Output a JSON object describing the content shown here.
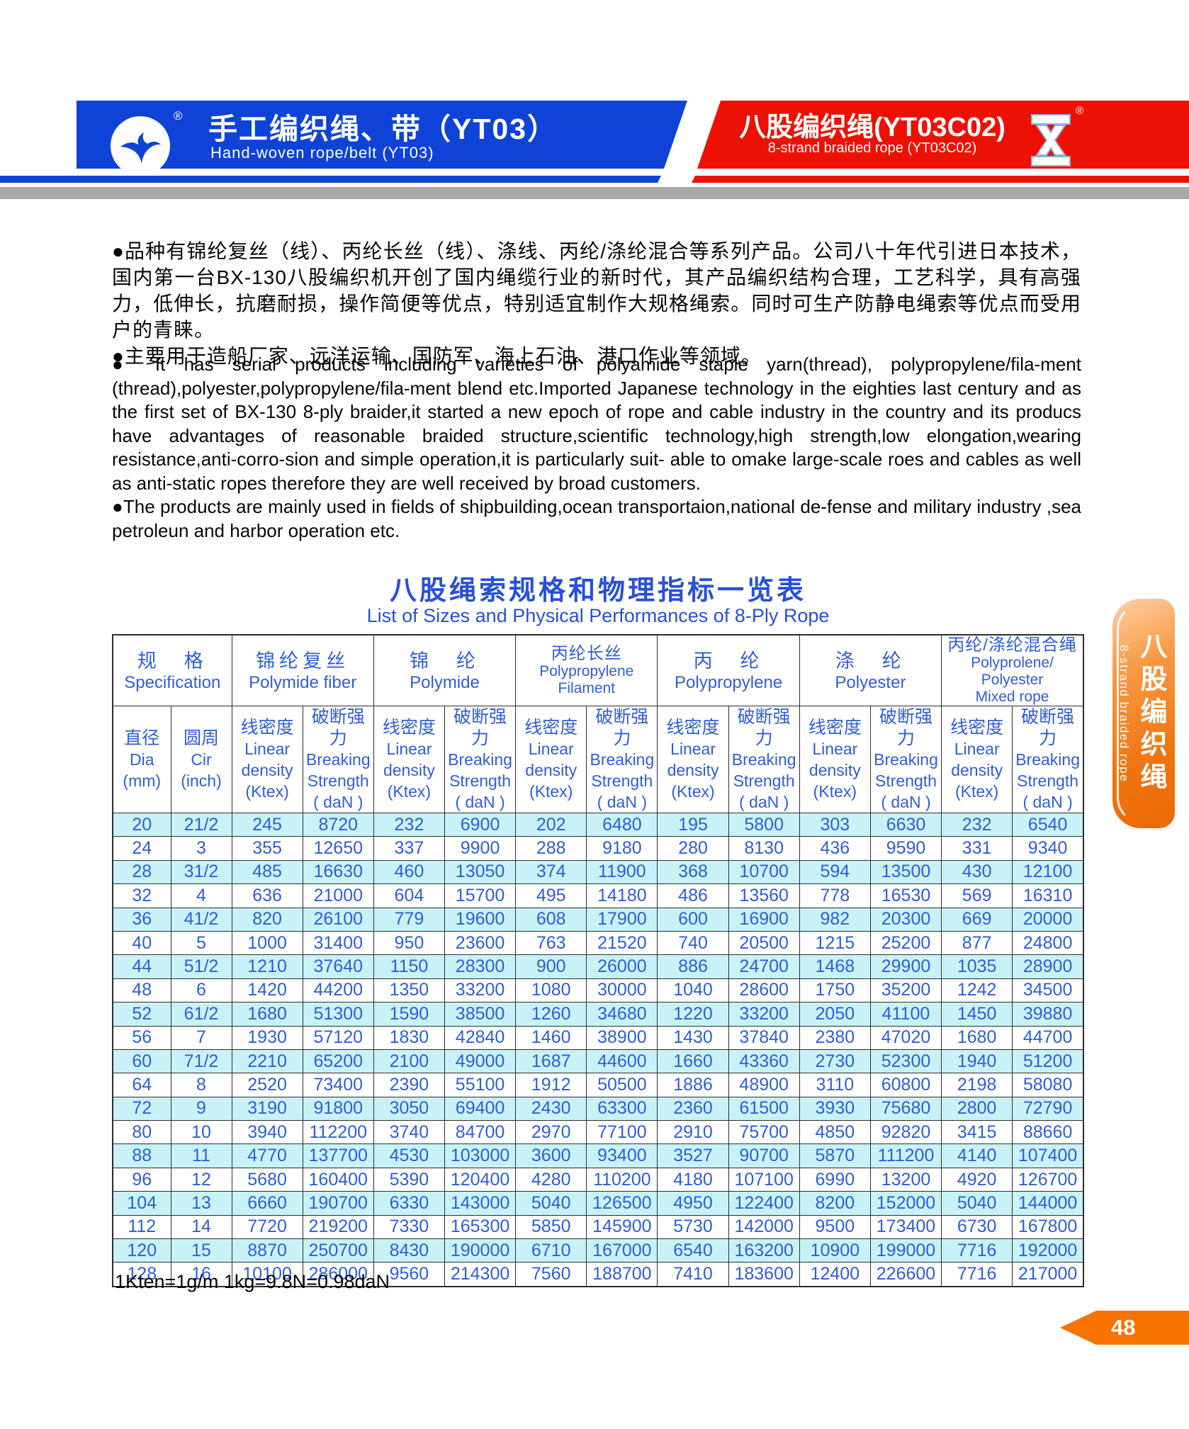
{
  "header": {
    "left": {
      "title_zh": "手工编织绳、带（YT03）",
      "title_en": "Hand-woven rope/belt (YT03)",
      "registered": "®",
      "logo": "seagull-logo"
    },
    "right": {
      "title_zh": "八股编织绳(YT03C02)",
      "title_en": "8-strand braided rope (YT03C02)",
      "registered": "®",
      "logo": "rope-hourglass-logo"
    }
  },
  "intro": {
    "zh": [
      "●品种有锦纶复丝（线）、丙纶长丝（线）、涤线、丙纶/涤纶混合等系列产品。公司八十年代引进日本技术，国内第一台BX-130八股编织机开创了国内绳缆行业的新时代，其产品编织结构合理，工艺科学，具有高强力，低伸长，抗磨耐损，操作简便等优点，特别适宜制作大规格绳索。同时可生产防静电绳索等优点而受用户的青睐。",
      "●主要用于造船厂家、远洋运输、国防军、海上石油、港口作业等领域。"
    ],
    "en": [
      "● It has serial products including varieties of polyamide staple yarn(thread), polypropylene/fila-ment (thread),polyester,polypropylene/fila-ment blend etc.Imported Japanese technology in the eighties last century and as the first set of BX-130 8-ply braider,it started a new epoch of rope and cable industry in the country and its producs have advantages of reasonable braided structure,scientific technology,high strength,low elongation,wearing resistance,anti-corro-sion and simple operation,it is particularly suit- able to omake large-scale roes and cables as well as anti-static ropes therefore they are well received by broad customers.",
      "●The products are mainly used in fields of shipbuilding,ocean transportaion,national de-fense and military industry ,sea petroleun and harbor operation etc."
    ]
  },
  "table": {
    "title_zh": "八股绳索规格和物理指标一览表",
    "title_en": "List of Sizes and Physical Performances of 8-Ply Rope",
    "column_groups": [
      [
        "规　格",
        "Specification"
      ],
      [
        "锦纶复丝",
        "Polymide fiber"
      ],
      [
        "锦　纶",
        "Polymide"
      ],
      [
        "丙纶长丝",
        "Polypropylene",
        "Filament"
      ],
      [
        "丙　纶",
        "Polypropylene"
      ],
      [
        "涤　纶",
        "Polyester"
      ],
      [
        "丙纶/涤纶混合绳",
        "Polyprolene/ Polyester",
        "Mixed rope"
      ]
    ],
    "subheaders": [
      [
        "直径",
        "Dia",
        "(mm)"
      ],
      [
        "圆周",
        "Cir",
        "(inch)"
      ],
      [
        "线密度",
        "Linear",
        "density",
        "(Ktex)"
      ],
      [
        "破断强力",
        "Breaking",
        "Strength",
        "( daN )"
      ],
      [
        "线密度",
        "Linear",
        "density",
        "(Ktex)"
      ],
      [
        "破断强力",
        "Breaking",
        "Strength",
        "( daN )"
      ],
      [
        "线密度",
        "Linear",
        "density",
        "(Ktex)"
      ],
      [
        "破断强力",
        "Breaking",
        "Strength",
        "( daN )"
      ],
      [
        "线密度",
        "Linear",
        "density",
        "(Ktex)"
      ],
      [
        "破断强力",
        "Breaking",
        "Strength",
        "( daN )"
      ],
      [
        "线密度",
        "Linear",
        "density",
        "(Ktex)"
      ],
      [
        "破断强力",
        "Breaking",
        "Strength",
        "( daN )"
      ],
      [
        "线密度",
        "Linear",
        "density",
        "(Ktex)"
      ],
      [
        "破断强力",
        "Breaking",
        "Strength",
        "( daN )"
      ]
    ],
    "rows": [
      [
        "20",
        "21/2",
        "245",
        "8720",
        "232",
        "6900",
        "202",
        "6480",
        "195",
        "5800",
        "303",
        "6630",
        "232",
        "6540"
      ],
      [
        "24",
        "3",
        "355",
        "12650",
        "337",
        "9900",
        "288",
        "9180",
        "280",
        "8130",
        "436",
        "9590",
        "331",
        "9340"
      ],
      [
        "28",
        "31/2",
        "485",
        "16630",
        "460",
        "13050",
        "374",
        "11900",
        "368",
        "10700",
        "594",
        "13500",
        "430",
        "12100"
      ],
      [
        "32",
        "4",
        "636",
        "21000",
        "604",
        "15700",
        "495",
        "14180",
        "486",
        "13560",
        "778",
        "16530",
        "569",
        "16310"
      ],
      [
        "36",
        "41/2",
        "820",
        "26100",
        "779",
        "19600",
        "608",
        "17900",
        "600",
        "16900",
        "982",
        "20300",
        "669",
        "20000"
      ],
      [
        "40",
        "5",
        "1000",
        "31400",
        "950",
        "23600",
        "763",
        "21520",
        "740",
        "20500",
        "1215",
        "25200",
        "877",
        "24800"
      ],
      [
        "44",
        "51/2",
        "1210",
        "37640",
        "1150",
        "28300",
        "900",
        "26000",
        "886",
        "24700",
        "1468",
        "29900",
        "1035",
        "28900"
      ],
      [
        "48",
        "6",
        "1420",
        "44200",
        "1350",
        "33200",
        "1080",
        "30000",
        "1040",
        "28600",
        "1750",
        "35200",
        "1242",
        "34500"
      ],
      [
        "52",
        "61/2",
        "1680",
        "51300",
        "1590",
        "38500",
        "1260",
        "34680",
        "1220",
        "33200",
        "2050",
        "41100",
        "1450",
        "39880"
      ],
      [
        "56",
        "7",
        "1930",
        "57120",
        "1830",
        "42840",
        "1460",
        "38900",
        "1430",
        "37840",
        "2380",
        "47020",
        "1680",
        "44700"
      ],
      [
        "60",
        "71/2",
        "2210",
        "65200",
        "2100",
        "49000",
        "1687",
        "44600",
        "1660",
        "43360",
        "2730",
        "52300",
        "1940",
        "51200"
      ],
      [
        "64",
        "8",
        "2520",
        "73400",
        "2390",
        "55100",
        "1912",
        "50500",
        "1886",
        "48900",
        "3110",
        "60800",
        "2198",
        "58080"
      ],
      [
        "72",
        "9",
        "3190",
        "91800",
        "3050",
        "69400",
        "2430",
        "63300",
        "2360",
        "61500",
        "3930",
        "75680",
        "2800",
        "72790"
      ],
      [
        "80",
        "10",
        "3940",
        "112200",
        "3740",
        "84700",
        "2970",
        "77100",
        "2910",
        "75700",
        "4850",
        "92820",
        "3415",
        "88660"
      ],
      [
        "88",
        "11",
        "4770",
        "137700",
        "4530",
        "103000",
        "3600",
        "93400",
        "3527",
        "90700",
        "5870",
        "111200",
        "4140",
        "107400"
      ],
      [
        "96",
        "12",
        "5680",
        "160400",
        "5390",
        "120400",
        "4280",
        "110200",
        "4180",
        "107100",
        "6990",
        "13200",
        "4920",
        "126700"
      ],
      [
        "104",
        "13",
        "6660",
        "190700",
        "6330",
        "143000",
        "5040",
        "126500",
        "4950",
        "122400",
        "8200",
        "152000",
        "5040",
        "144000"
      ],
      [
        "112",
        "14",
        "7720",
        "219200",
        "7330",
        "165300",
        "5850",
        "145900",
        "5730",
        "142000",
        "9500",
        "173400",
        "6730",
        "167800"
      ],
      [
        "120",
        "15",
        "8870",
        "250700",
        "8430",
        "190000",
        "6710",
        "167000",
        "6540",
        "163200",
        "10900",
        "199000",
        "7716",
        "192000"
      ],
      [
        "128",
        "16",
        "10100",
        "286000",
        "9560",
        "214300",
        "7560",
        "188700",
        "7410",
        "183600",
        "12400",
        "226600",
        "7716",
        "217000"
      ]
    ],
    "footnote": "1Kten=1g/m  1kg=9.8N=0.98daN"
  },
  "side_tab": {
    "zh": "八股编织绳",
    "en": "8-strand braided rope"
  },
  "page_number": "48",
  "colors": {
    "banner_blue": "#0f43d8",
    "banner_red": "#ed1105",
    "gray_bar": "#a9a9a9",
    "table_text_blue": "#2e5ed8",
    "table_title_blue": "#2850d8",
    "row_cyan": "#c9f2f8",
    "tab_orange": "#f0740e",
    "page_arrow_orange": "#f87300"
  }
}
